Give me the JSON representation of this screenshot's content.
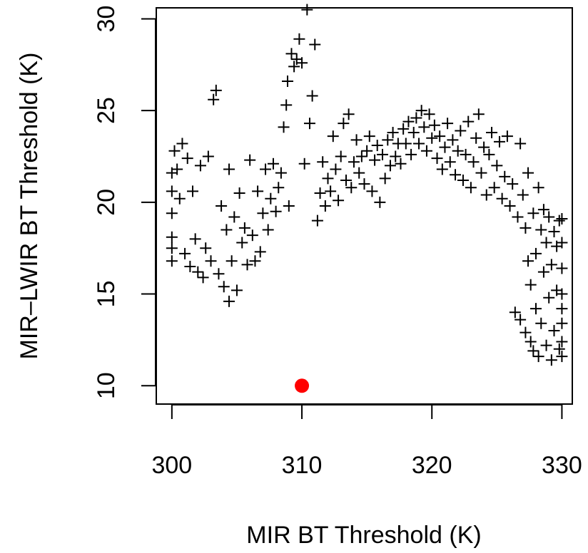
{
  "chart_data": {
    "type": "scatter",
    "title": "",
    "xlabel": "MIR BT Threshold (K)",
    "ylabel": "MIR–LWIR BT Threshold (K)",
    "xlim": [
      298.8,
      330.8
    ],
    "ylim": [
      9.0,
      30.6
    ],
    "xticks": [
      300,
      310,
      320,
      330
    ],
    "yticks": [
      10,
      15,
      20,
      25,
      30
    ],
    "grid": false,
    "legend": "none",
    "series": [
      {
        "marker": "plus",
        "color": "#000000",
        "points": [
          [
            300.0,
            21.6
          ],
          [
            300.0,
            20.6
          ],
          [
            300.0,
            19.4
          ],
          [
            300.0,
            18.1
          ],
          [
            300.0,
            17.5
          ],
          [
            300.0,
            16.8
          ],
          [
            300.2,
            22.8
          ],
          [
            300.4,
            21.8
          ],
          [
            300.6,
            20.2
          ],
          [
            300.8,
            23.2
          ],
          [
            301.0,
            17.2
          ],
          [
            301.2,
            22.4
          ],
          [
            301.4,
            16.5
          ],
          [
            301.6,
            20.6
          ],
          [
            301.8,
            18.0
          ],
          [
            302.0,
            16.2
          ],
          [
            302.2,
            22.0
          ],
          [
            302.4,
            15.9
          ],
          [
            302.6,
            17.5
          ],
          [
            302.8,
            22.5
          ],
          [
            303.0,
            16.8
          ],
          [
            303.2,
            25.6
          ],
          [
            303.4,
            26.1
          ],
          [
            303.6,
            16.1
          ],
          [
            303.8,
            19.8
          ],
          [
            304.0,
            15.4
          ],
          [
            304.2,
            18.5
          ],
          [
            304.4,
            14.6
          ],
          [
            304.4,
            21.8
          ],
          [
            304.6,
            16.8
          ],
          [
            304.8,
            19.2
          ],
          [
            305.0,
            15.2
          ],
          [
            305.2,
            20.5
          ],
          [
            305.4,
            17.8
          ],
          [
            305.6,
            18.6
          ],
          [
            305.8,
            16.6
          ],
          [
            306.0,
            22.3
          ],
          [
            306.2,
            18.2
          ],
          [
            306.4,
            16.8
          ],
          [
            306.6,
            20.6
          ],
          [
            306.8,
            17.3
          ],
          [
            307.0,
            19.4
          ],
          [
            307.2,
            21.8
          ],
          [
            307.4,
            18.5
          ],
          [
            307.6,
            20.2
          ],
          [
            307.8,
            22.1
          ],
          [
            308.0,
            19.5
          ],
          [
            308.2,
            20.8
          ],
          [
            308.4,
            21.6
          ],
          [
            308.6,
            24.1
          ],
          [
            308.8,
            25.3
          ],
          [
            308.9,
            26.6
          ],
          [
            309.0,
            19.8
          ],
          [
            309.2,
            28.1
          ],
          [
            309.4,
            27.4
          ],
          [
            309.6,
            27.8
          ],
          [
            309.8,
            28.9
          ],
          [
            310.0,
            27.6
          ],
          [
            310.2,
            22.1
          ],
          [
            310.4,
            30.5
          ],
          [
            310.6,
            24.3
          ],
          [
            310.8,
            25.8
          ],
          [
            311.0,
            28.6
          ],
          [
            311.2,
            19.0
          ],
          [
            311.4,
            20.5
          ],
          [
            311.6,
            22.2
          ],
          [
            311.8,
            19.8
          ],
          [
            312.0,
            21.3
          ],
          [
            312.2,
            20.6
          ],
          [
            312.4,
            23.6
          ],
          [
            312.6,
            21.8
          ],
          [
            312.8,
            20.1
          ],
          [
            313.0,
            22.5
          ],
          [
            313.2,
            24.3
          ],
          [
            313.4,
            21.2
          ],
          [
            313.6,
            24.8
          ],
          [
            313.8,
            20.8
          ],
          [
            314.0,
            22.2
          ],
          [
            314.2,
            23.4
          ],
          [
            314.4,
            21.6
          ],
          [
            314.6,
            22.5
          ],
          [
            314.8,
            21.0
          ],
          [
            315.0,
            22.8
          ],
          [
            315.2,
            23.6
          ],
          [
            315.4,
            20.6
          ],
          [
            315.6,
            22.3
          ],
          [
            315.8,
            23.1
          ],
          [
            316.0,
            20.0
          ],
          [
            316.2,
            22.6
          ],
          [
            316.4,
            21.3
          ],
          [
            316.6,
            23.4
          ],
          [
            316.8,
            22.0
          ],
          [
            317.0,
            23.8
          ],
          [
            317.2,
            22.5
          ],
          [
            317.4,
            23.2
          ],
          [
            317.6,
            22.1
          ],
          [
            317.8,
            24.0
          ],
          [
            318.0,
            23.2
          ],
          [
            318.2,
            24.4
          ],
          [
            318.4,
            22.6
          ],
          [
            318.6,
            23.8
          ],
          [
            318.8,
            24.6
          ],
          [
            319.0,
            23.2
          ],
          [
            319.2,
            25.0
          ],
          [
            319.4,
            24.1
          ],
          [
            319.6,
            22.8
          ],
          [
            319.8,
            24.8
          ],
          [
            320.0,
            23.5
          ],
          [
            320.2,
            24.2
          ],
          [
            320.4,
            22.4
          ],
          [
            320.6,
            23.6
          ],
          [
            320.8,
            21.8
          ],
          [
            321.0,
            23.0
          ],
          [
            321.2,
            24.3
          ],
          [
            321.4,
            22.2
          ],
          [
            321.6,
            23.4
          ],
          [
            321.8,
            21.5
          ],
          [
            322.0,
            22.8
          ],
          [
            322.2,
            23.9
          ],
          [
            322.4,
            21.2
          ],
          [
            322.6,
            22.6
          ],
          [
            322.8,
            24.4
          ],
          [
            323.0,
            20.8
          ],
          [
            323.2,
            22.2
          ],
          [
            323.4,
            23.5
          ],
          [
            323.6,
            24.8
          ],
          [
            323.8,
            21.6
          ],
          [
            324.0,
            23.0
          ],
          [
            324.2,
            20.4
          ],
          [
            324.4,
            22.6
          ],
          [
            324.6,
            23.8
          ],
          [
            324.8,
            20.8
          ],
          [
            325.0,
            22.0
          ],
          [
            325.2,
            23.3
          ],
          [
            325.4,
            20.2
          ],
          [
            325.6,
            21.4
          ],
          [
            325.8,
            23.6
          ],
          [
            326.0,
            19.8
          ],
          [
            326.2,
            21.0
          ],
          [
            326.4,
            14.0
          ],
          [
            326.6,
            19.2
          ],
          [
            326.8,
            23.2
          ],
          [
            326.8,
            13.6
          ],
          [
            327.0,
            20.4
          ],
          [
            327.2,
            18.6
          ],
          [
            327.2,
            12.9
          ],
          [
            327.4,
            16.8
          ],
          [
            327.4,
            21.6
          ],
          [
            327.6,
            12.4
          ],
          [
            327.6,
            15.5
          ],
          [
            327.8,
            19.4
          ],
          [
            327.8,
            11.9
          ],
          [
            328.0,
            17.2
          ],
          [
            328.0,
            14.2
          ],
          [
            328.2,
            20.8
          ],
          [
            328.2,
            11.6
          ],
          [
            328.4,
            18.5
          ],
          [
            328.4,
            13.4
          ],
          [
            328.6,
            16.2
          ],
          [
            328.6,
            19.6
          ],
          [
            328.8,
            12.2
          ],
          [
            328.8,
            17.8
          ],
          [
            329.0,
            14.8
          ],
          [
            329.0,
            19.2
          ],
          [
            329.2,
            11.4
          ],
          [
            329.2,
            16.6
          ],
          [
            329.4,
            18.4
          ],
          [
            329.4,
            13.0
          ],
          [
            329.6,
            15.2
          ],
          [
            329.6,
            17.6
          ],
          [
            329.8,
            12.0
          ],
          [
            329.8,
            19.0
          ],
          [
            330.0,
            11.6
          ],
          [
            330.0,
            13.4
          ],
          [
            330.0,
            15.0
          ],
          [
            330.0,
            16.4
          ],
          [
            330.0,
            17.8
          ],
          [
            330.0,
            19.1
          ],
          [
            330.0,
            12.4
          ],
          [
            330.0,
            14.2
          ]
        ]
      },
      {
        "marker": "circle",
        "color": "#ff0000",
        "points": [
          [
            310.0,
            10.0
          ]
        ]
      }
    ]
  }
}
